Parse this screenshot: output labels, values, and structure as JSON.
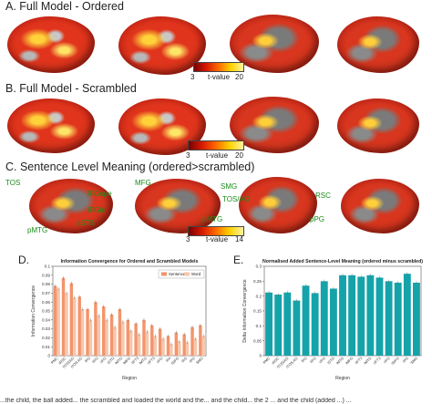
{
  "panels": {
    "a": {
      "title": "A. Full Model - Ordered",
      "cbar_min": "3",
      "cbar_max": "20",
      "cbar_label": "t-value"
    },
    "b": {
      "title": "B. Full Model - Scrambled",
      "cbar_min": "3",
      "cbar_max": "20",
      "cbar_label": "t-value"
    },
    "c": {
      "title": "C. Sentence Level Meaning (ordered>scrambled)",
      "cbar_min": "3",
      "cbar_max": "14",
      "cbar_label": "t-value",
      "labels": {
        "tos": "TOS",
        "ifgope": "IFGope",
        "ifgtri": "IFGtri",
        "asts": "aSTS",
        "pmtg1": "pMTG",
        "mfg": "MFG",
        "smg": "SMG",
        "tosag": "TOS/AG",
        "pmtg2": "pMTG",
        "rsc": "RSC",
        "ppg": "pPG"
      }
    },
    "d": {
      "letter": "D."
    },
    "e": {
      "letter": "E."
    }
  },
  "caption": "...the child, the ball added... the scrambled and loaded the world and the... and the child... the 2 ... and the child (added ...) ...",
  "chart_data": [
    {
      "type": "bar",
      "title": "Information Convergence for Ordered and Scrambled Models",
      "xlabel": "Region",
      "ylabel": "Information Convergence",
      "ylim": [
        0,
        0.1
      ],
      "yticks": [
        "0",
        "0.01",
        "0.02",
        "0.03",
        "0.04",
        "0.05",
        "0.06",
        "0.07",
        "0.08",
        "0.09",
        "0.1"
      ],
      "categories": [
        "PMC",
        "rRSC",
        "lTOS/AG",
        "lTOS AG",
        "lPG",
        "lIFG",
        "rIFG",
        "lSTG",
        "lMTG",
        "lMFG",
        "lIFT3",
        "lMTG",
        "rIFT3",
        "rIFG",
        "lFA",
        "lSIFG",
        "lAG",
        "rPG",
        "SMG"
      ],
      "series": [
        {
          "name": "Sentence",
          "color": "#f2956c",
          "values": [
            0.078,
            0.087,
            0.081,
            0.066,
            0.052,
            0.06,
            0.055,
            0.046,
            0.052,
            0.04,
            0.036,
            0.04,
            0.034,
            0.03,
            0.022,
            0.026,
            0.024,
            0.032,
            0.034
          ]
        },
        {
          "name": "Word",
          "color": "#f6c7ad",
          "values": [
            0.075,
            0.07,
            0.065,
            0.052,
            0.04,
            0.045,
            0.04,
            0.032,
            0.038,
            0.028,
            0.024,
            0.027,
            0.022,
            0.019,
            0.013,
            0.016,
            0.015,
            0.019,
            0.022
          ]
        }
      ]
    },
    {
      "type": "bar",
      "title": "Normalised Added Sentence-Level Meaning (ordered minus scrambled)",
      "xlabel": "Region",
      "ylabel": "Delta Information Convergence",
      "ylim": [
        0,
        0.3
      ],
      "yticks": [
        "0",
        "0.05",
        "0.1",
        "0.15",
        "0.2",
        "0.25",
        "0.3"
      ],
      "categories": [
        "PMC",
        "rRSC",
        "lTOS/AG",
        "lTOS AG",
        "lPG",
        "lIFG",
        "rIFG",
        "lSTG",
        "lMTG",
        "lMFG",
        "lIFT3",
        "lMTG",
        "rIFT3",
        "rIFG",
        "lSIFG",
        "rPG",
        "SMG"
      ],
      "series": [
        {
          "name": "",
          "color": "#15a3aa",
          "values": [
            0.212,
            0.205,
            0.212,
            0.185,
            0.235,
            0.21,
            0.25,
            0.225,
            0.27,
            0.27,
            0.265,
            0.27,
            0.262,
            0.25,
            0.245,
            0.275,
            0.245
          ]
        }
      ]
    }
  ]
}
